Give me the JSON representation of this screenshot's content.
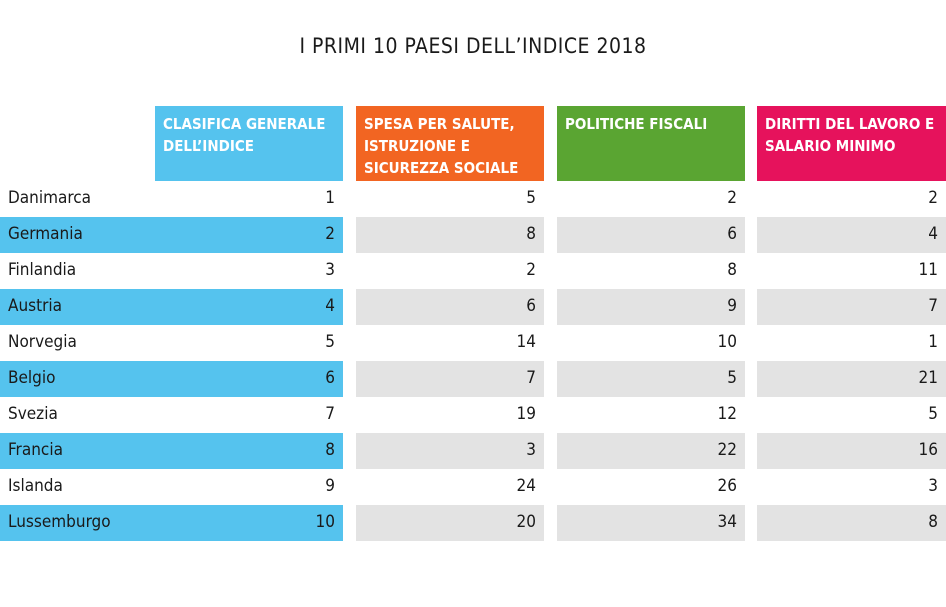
{
  "chart_data": {
    "type": "table",
    "title": "I PRIMI 10 PAESI DELL’INDICE 2018",
    "columns": [
      {
        "label": "CLASIFICA GENERALE DELL’INDICE",
        "color": "#55c3ee"
      },
      {
        "label": "SPESA PER SALUTE, ISTRUZIONE E SICUREZZA SOCIALE",
        "color": "#f26522"
      },
      {
        "label": "POLITICHE FISCALI",
        "color": "#5aa532"
      },
      {
        "label": "DIRITTI DEL LAVORO E SALARIO MINIMO",
        "color": "#e6125c"
      }
    ],
    "rows": [
      {
        "country": "Danimarca",
        "values": [
          1,
          5,
          2,
          2
        ]
      },
      {
        "country": "Germania",
        "values": [
          2,
          8,
          6,
          4
        ]
      },
      {
        "country": "Finlandia",
        "values": [
          3,
          2,
          8,
          11
        ]
      },
      {
        "country": "Austria",
        "values": [
          4,
          6,
          9,
          7
        ]
      },
      {
        "country": "Norvegia",
        "values": [
          5,
          14,
          10,
          1
        ]
      },
      {
        "country": "Belgio",
        "values": [
          6,
          7,
          5,
          21
        ]
      },
      {
        "country": "Svezia",
        "values": [
          7,
          19,
          12,
          5
        ]
      },
      {
        "country": "Francia",
        "values": [
          8,
          3,
          22,
          16
        ]
      },
      {
        "country": "Islanda",
        "values": [
          9,
          24,
          26,
          3
        ]
      },
      {
        "country": "Lussemburgo",
        "values": [
          10,
          20,
          34,
          8
        ]
      }
    ],
    "stripe_colors": {
      "highlight": "#55c3ee",
      "alternate": "#e3e3e3"
    }
  }
}
